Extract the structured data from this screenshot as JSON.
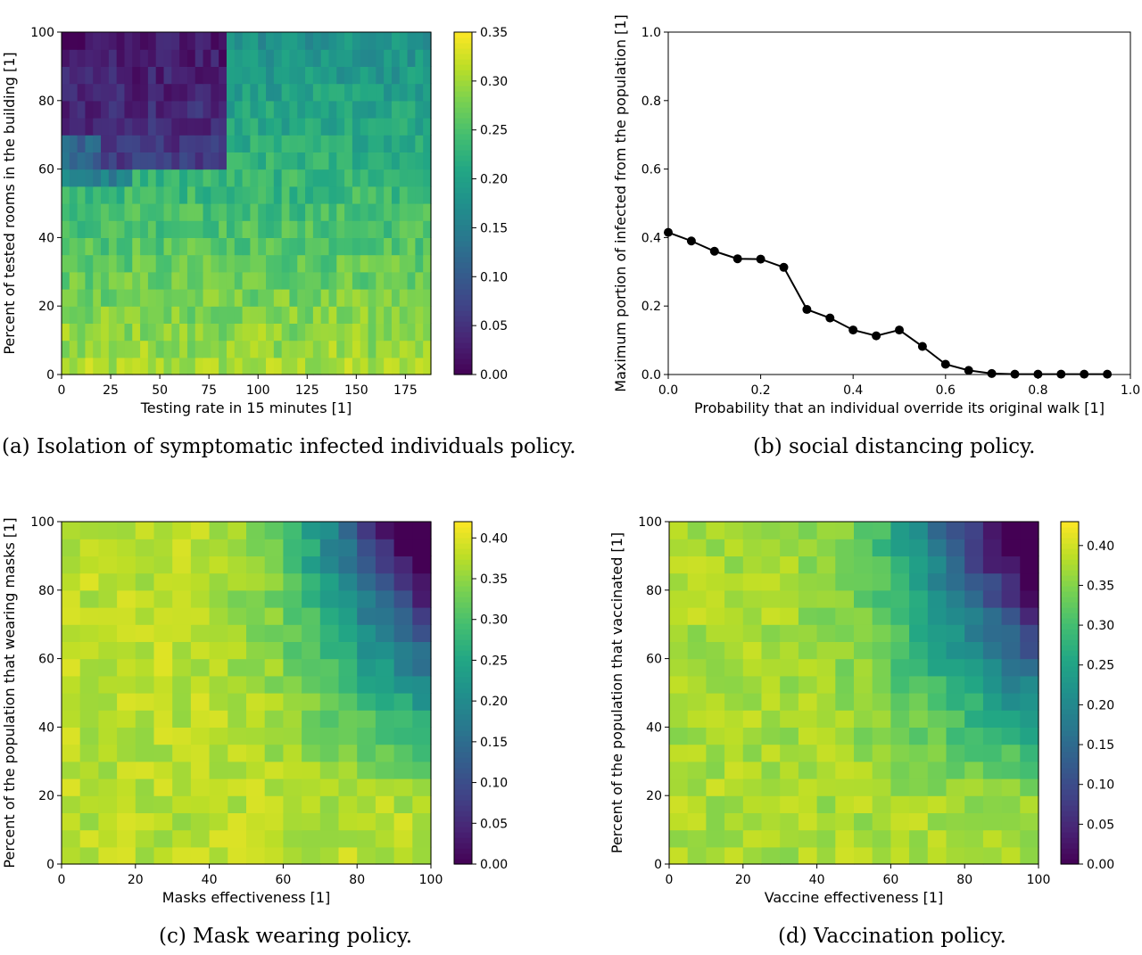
{
  "captions": {
    "a": "(a) Isolation of symptomatic infected individuals policy.",
    "b": "(b) social distancing policy.",
    "c": "(c) Mask wearing policy.",
    "d": "(d) Vaccination policy."
  },
  "colors": {
    "line": "#000000",
    "colormap": "viridis"
  },
  "chart_data": [
    {
      "id": "a",
      "type": "heatmap",
      "xlabel": "Testing rate in 15 minutes [1]",
      "ylabel": "Percent of tested rooms in the building [1]",
      "xlim": [
        0,
        188
      ],
      "ylim": [
        0,
        100
      ],
      "xticks": [
        0,
        25,
        50,
        75,
        100,
        125,
        150,
        175
      ],
      "yticks": [
        0,
        20,
        40,
        60,
        80,
        100
      ],
      "colorbar": {
        "min": 0,
        "max": 0.35,
        "ticks": [
          "0.00",
          "0.05",
          "0.10",
          "0.15",
          "0.20",
          "0.25",
          "0.30",
          "0.35"
        ]
      },
      "grid_cols": 47,
      "grid_rows": 20,
      "pattern": "Values near 0.28-0.33 at low room percentage, ~0.15-0.25 for 60-100% rooms at higher testing rates, and very low (~0.02-0.08) in the top-left region (rooms > 60%, testing rate < 85)."
    },
    {
      "id": "b",
      "type": "line",
      "xlabel": "Probability that an individual override its original walk [1]",
      "ylabel": "Maximum portion of infected from the population [1]",
      "xlim": [
        0,
        1
      ],
      "ylim": [
        0,
        1
      ],
      "xticks": [
        "0.0",
        "0.2",
        "0.4",
        "0.6",
        "0.8",
        "1.0"
      ],
      "yticks": [
        "0.0",
        "0.2",
        "0.4",
        "0.6",
        "0.8",
        "1.0"
      ],
      "grid": false,
      "x": [
        0.0,
        0.05,
        0.1,
        0.15,
        0.2,
        0.25,
        0.3,
        0.35,
        0.4,
        0.45,
        0.5,
        0.55,
        0.6,
        0.65,
        0.7,
        0.75,
        0.8,
        0.85,
        0.9,
        0.95
      ],
      "y": [
        0.415,
        0.39,
        0.36,
        0.338,
        0.337,
        0.313,
        0.19,
        0.165,
        0.13,
        0.113,
        0.13,
        0.082,
        0.03,
        0.012,
        0.003,
        0.001,
        0.001,
        0.001,
        0.001,
        0.001
      ]
    },
    {
      "id": "c",
      "type": "heatmap",
      "xlabel": "Masks effectiveness [1]",
      "ylabel": "Percent of the population that wearing masks [1]",
      "xlim": [
        0,
        100
      ],
      "ylim": [
        0,
        100
      ],
      "xticks": [
        0,
        20,
        40,
        60,
        80,
        100
      ],
      "yticks": [
        0,
        20,
        40,
        60,
        80,
        100
      ],
      "colorbar": {
        "min": 0,
        "max": 0.42,
        "ticks": [
          "0.00",
          "0.05",
          "0.10",
          "0.15",
          "0.20",
          "0.25",
          "0.30",
          "0.35",
          "0.40"
        ]
      },
      "grid_cols": 20,
      "grid_rows": 20,
      "pattern": "Mostly 0.33-0.40 at low effectiveness or low coverage, decreasing toward the top-right corner where values reach ~0.00 (effectiveness > 85, coverage > 80)."
    },
    {
      "id": "d",
      "type": "heatmap",
      "xlabel": "Vaccine effectiveness [1]",
      "ylabel": "Percent of the population that vaccinated [1]",
      "xlim": [
        0,
        100
      ],
      "ylim": [
        0,
        100
      ],
      "xticks": [
        0,
        20,
        40,
        60,
        80,
        100
      ],
      "yticks": [
        0,
        20,
        40,
        60,
        80,
        100
      ],
      "colorbar": {
        "min": 0,
        "max": 0.43,
        "ticks": [
          "0.00",
          "0.05",
          "0.10",
          "0.15",
          "0.20",
          "0.25",
          "0.30",
          "0.35",
          "0.40"
        ]
      },
      "grid_cols": 20,
      "grid_rows": 20,
      "pattern": "Mostly 0.33-0.40 at low effectiveness or low coverage, decreasing toward the top-right corner where values reach ~0.00 (effectiveness > 90, coverage > 80)."
    }
  ]
}
